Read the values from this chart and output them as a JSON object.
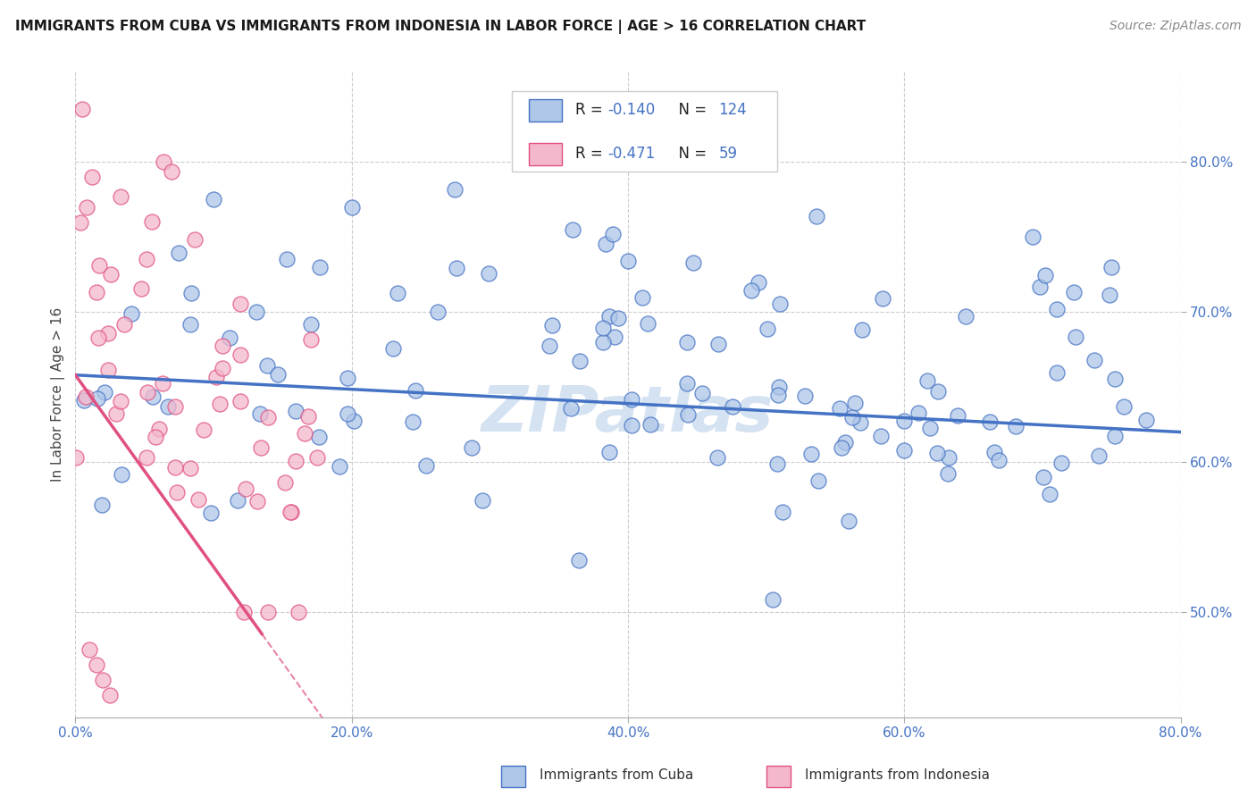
{
  "title": "IMMIGRANTS FROM CUBA VS IMMIGRANTS FROM INDONESIA IN LABOR FORCE | AGE > 16 CORRELATION CHART",
  "source": "Source: ZipAtlas.com",
  "ylabel": "In Labor Force | Age > 16",
  "xlim": [
    0.0,
    0.8
  ],
  "ylim": [
    0.43,
    0.86
  ],
  "xtick_labels": [
    "0.0%",
    "20.0%",
    "40.0%",
    "60.0%",
    "80.0%"
  ],
  "xtick_positions": [
    0.0,
    0.2,
    0.4,
    0.6,
    0.8
  ],
  "ytick_labels": [
    "50.0%",
    "60.0%",
    "70.0%",
    "80.0%"
  ],
  "ytick_positions": [
    0.5,
    0.6,
    0.7,
    0.8
  ],
  "legend_r_cuba": "-0.140",
  "legend_n_cuba": "124",
  "legend_r_indonesia": "-0.471",
  "legend_n_indonesia": "59",
  "color_cuba_fill": "#aec6e8",
  "color_cuba_edge": "#4472c4",
  "color_indonesia_fill": "#f4b8cc",
  "color_indonesia_edge": "#e05080",
  "color_line_cuba": "#4472c4",
  "color_line_indonesia": "#e05080",
  "background_color": "#ffffff",
  "grid_color": "#cccccc",
  "watermark_color": "#d0dff0",
  "title_fontsize": 11,
  "source_fontsize": 10,
  "tick_fontsize": 11,
  "ylabel_fontsize": 11
}
